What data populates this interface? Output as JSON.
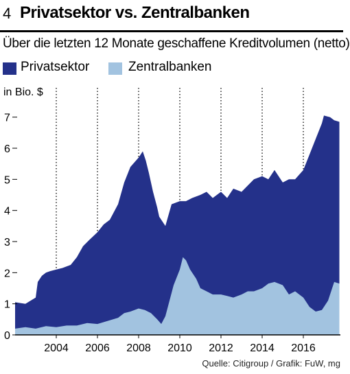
{
  "header": {
    "number": "4",
    "title": "Privatsektor vs. Zentralbanken",
    "subtitle": "Über die letzten 12 Monate geschaffene Kreditvolumen (netto)"
  },
  "source": "Quelle: Citigroup / Grafik: FuW, mg",
  "chart_data": {
    "type": "area",
    "stacked": true,
    "ylabel": "in Bio. $",
    "ylim": [
      0,
      7.5
    ],
    "xlim": [
      2002.0,
      2017.8
    ],
    "x_ticks": [
      2004,
      2006,
      2008,
      2010,
      2012,
      2014,
      2016
    ],
    "x_tick_labels": [
      "2004",
      "2006",
      "2008",
      "2010",
      "2012",
      "2014",
      "2016"
    ],
    "y_ticks": [
      0,
      1,
      2,
      3,
      4,
      5,
      6,
      7
    ],
    "y_tick_labels": [
      "0",
      "1",
      "2",
      "3",
      "4",
      "5",
      "6",
      "7"
    ],
    "grid": "vertical dotted",
    "legend_position": "top-left",
    "series": [
      {
        "name": "Privatsektor",
        "color": "#24318a",
        "x": [
          2002.0,
          2002.5,
          2003.0,
          2003.1,
          2003.3,
          2003.5,
          2003.7,
          2004.0,
          2004.3,
          2004.7,
          2005.0,
          2005.3,
          2005.6,
          2006.0,
          2006.3,
          2006.6,
          2007.0,
          2007.3,
          2007.6,
          2008.0,
          2008.2,
          2008.35,
          2008.5,
          2008.7,
          2008.9,
          2009.0,
          2009.3,
          2009.6,
          2010.0,
          2010.3,
          2010.6,
          2011.0,
          2011.3,
          2011.6,
          2012.0,
          2012.3,
          2012.6,
          2013.0,
          2013.3,
          2013.6,
          2014.0,
          2014.3,
          2014.6,
          2015.0,
          2015.3,
          2015.6,
          2016.0,
          2016.3,
          2016.6,
          2016.9,
          2017.0,
          2017.3,
          2017.5,
          2017.75
        ],
        "values": [
          1.05,
          1.0,
          1.2,
          1.7,
          1.9,
          2.0,
          2.05,
          2.1,
          2.15,
          2.25,
          2.5,
          2.85,
          3.05,
          3.3,
          3.55,
          3.7,
          4.2,
          4.9,
          5.4,
          5.7,
          5.9,
          5.6,
          5.2,
          4.6,
          4.1,
          3.8,
          3.5,
          4.2,
          4.3,
          4.3,
          4.4,
          4.5,
          4.6,
          4.4,
          4.6,
          4.4,
          4.7,
          4.6,
          4.8,
          5.0,
          5.1,
          5.0,
          5.3,
          4.9,
          5.0,
          5.0,
          5.3,
          5.8,
          6.3,
          6.8,
          7.05,
          7.0,
          6.9,
          6.85
        ]
      },
      {
        "name": "Zentralbanken",
        "color": "#a2c3e0",
        "x": [
          2002.0,
          2002.5,
          2003.0,
          2003.5,
          2004.0,
          2004.5,
          2005.0,
          2005.5,
          2006.0,
          2006.5,
          2007.0,
          2007.3,
          2007.6,
          2008.0,
          2008.3,
          2008.6,
          2008.9,
          2009.1,
          2009.3,
          2009.5,
          2009.7,
          2010.0,
          2010.15,
          2010.3,
          2010.5,
          2010.8,
          2011.0,
          2011.3,
          2011.6,
          2012.0,
          2012.3,
          2012.6,
          2013.0,
          2013.3,
          2013.6,
          2014.0,
          2014.3,
          2014.6,
          2015.0,
          2015.3,
          2015.6,
          2016.0,
          2016.3,
          2016.6,
          2016.9,
          2017.2,
          2017.5,
          2017.75
        ],
        "values": [
          0.2,
          0.25,
          0.2,
          0.28,
          0.25,
          0.3,
          0.3,
          0.38,
          0.35,
          0.45,
          0.55,
          0.7,
          0.75,
          0.85,
          0.8,
          0.7,
          0.5,
          0.35,
          0.6,
          1.1,
          1.6,
          2.1,
          2.5,
          2.4,
          2.1,
          1.8,
          1.5,
          1.4,
          1.3,
          1.3,
          1.25,
          1.2,
          1.3,
          1.4,
          1.4,
          1.5,
          1.65,
          1.7,
          1.6,
          1.3,
          1.4,
          1.2,
          0.9,
          0.75,
          0.8,
          1.1,
          1.7,
          1.65
        ]
      }
    ]
  }
}
